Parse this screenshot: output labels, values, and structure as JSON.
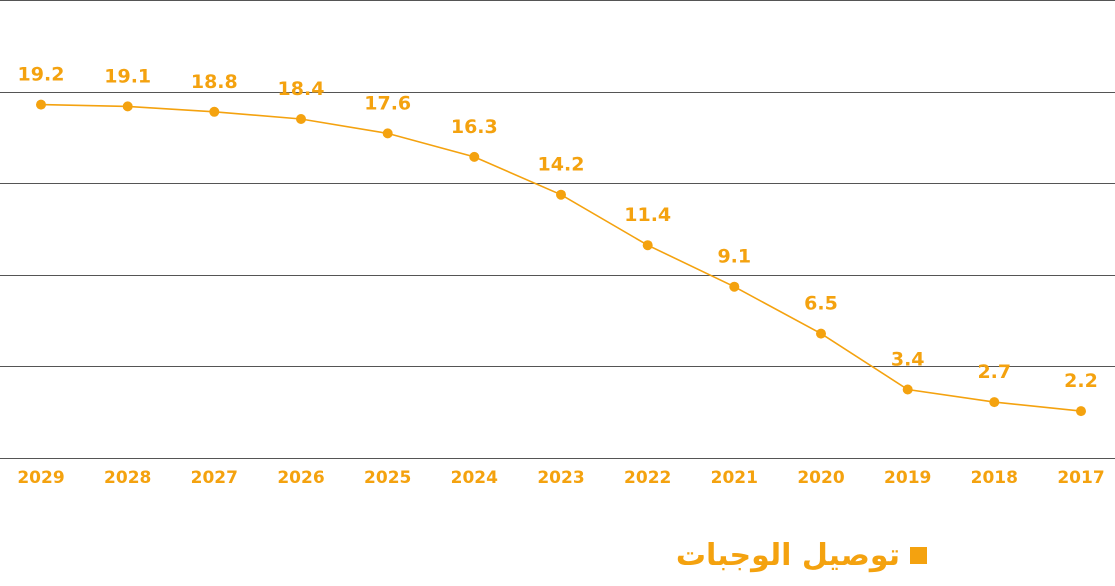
{
  "colors": {
    "series": "#f4a20f",
    "grid": "#555555"
  },
  "legend": {
    "label": "توصيل الوجبات"
  },
  "chart_data": {
    "type": "line",
    "x": [
      "2029",
      "2028",
      "2027",
      "2026",
      "2025",
      "2024",
      "2023",
      "2022",
      "2021",
      "2020",
      "2019",
      "2018",
      "2017"
    ],
    "series": [
      {
        "name": "توصيل الوجبات",
        "values": [
          19.2,
          19.1,
          18.8,
          18.4,
          17.6,
          16.3,
          14.2,
          11.4,
          9.1,
          6.5,
          3.4,
          2.7,
          2.2
        ],
        "labels": [
          "19.2",
          "19.1",
          "18.8",
          "18.4",
          "17.6",
          "16.3",
          "14.2",
          "11.4",
          "9.1",
          "6.5",
          "3.4",
          "2.7",
          "2.2"
        ]
      }
    ],
    "x_order": "descending-left-to-right",
    "ylim": [
      -0.4,
      25
    ],
    "grid": true,
    "legend_position": "bottom-center"
  }
}
